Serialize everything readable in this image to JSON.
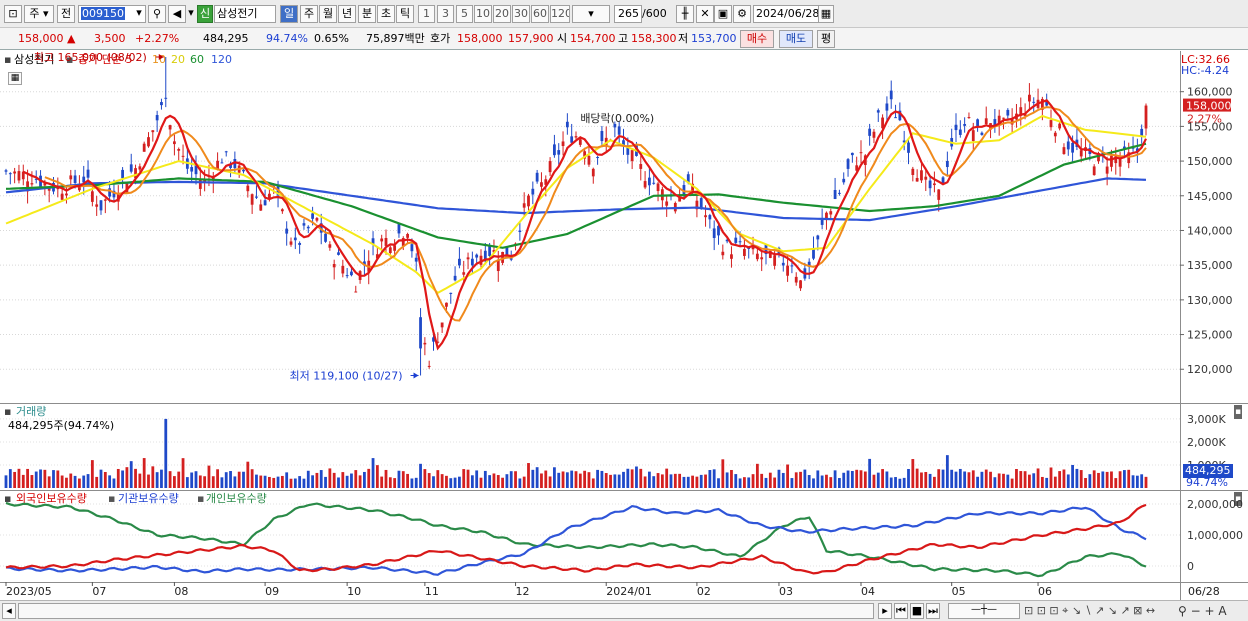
{
  "toolbar": {
    "menu_glyph": "⊡",
    "period_1": "주",
    "period_2": "전",
    "code": "009150",
    "name_badge": "신",
    "name": "삼성전기",
    "periods": [
      "일",
      "주",
      "월",
      "년",
      "분",
      "초",
      "틱"
    ],
    "active_period": "일",
    "intervals": [
      "1",
      "3",
      "5",
      "10",
      "20",
      "30",
      "60",
      "120"
    ],
    "count": "265",
    "count_total": "/600",
    "date": "2024/06/28"
  },
  "quote": {
    "price": "158,000",
    "arrow": "▲",
    "change": "3,500",
    "change_pct": "+2.27%",
    "volume": "484,295",
    "vol_ratio": "94.74%",
    "turnover": "0.65%",
    "amount": "75,897백만",
    "hoga_label": "호가",
    "hoga_sell": "158,000",
    "hoga_buy": "157,900",
    "open_label": "시",
    "open": "154,700",
    "high_label": "고",
    "high": "158,300",
    "low_label": "저",
    "low": "153,700",
    "buy_btn": "매수",
    "sell_btn": "매도",
    "avg_btn": "평"
  },
  "price_panel": {
    "legend_name": "삼성전기",
    "legend_ma_label": "종가 단순 5",
    "legend_ma": [
      "10",
      "20",
      "60",
      "120"
    ],
    "hi_annot": "최고 165,000 (08/02)",
    "lo_annot": "최저 119,100 (10/27)",
    "div_annot": "배당락(0.00%)",
    "lc": "LC:32.66",
    "hc": "HC:-4.24",
    "last_price": "158,000",
    "last_pct": "2.27%"
  },
  "volume_panel": {
    "title": "거래량",
    "value": "484,295주(94.74%)",
    "last": "484,295",
    "last_pct": "94.74%"
  },
  "holding_panel": {
    "legends": [
      "외국인보유수량",
      "기관보유수량",
      "개인보유수량"
    ]
  },
  "colors": {
    "up": "#d42020",
    "down": "#1f49c8",
    "ma5": "#e01818",
    "ma10": "#f08a1c",
    "ma20": "#f5ea1a",
    "ma60": "#1a9030",
    "ma120": "#2f55d8",
    "foreign": "#d81818",
    "inst": "#2f55d8",
    "indiv": "#2a8a48"
  },
  "chart_data": [
    {
      "type": "candlestick",
      "title": "삼성전기",
      "ylim": [
        116000,
        165000
      ],
      "yticks": [
        "160,000",
        "155,000",
        "150,000",
        "145,000",
        "140,000",
        "135,000",
        "130,000",
        "125,000",
        "120,000"
      ],
      "x_ticks": [
        "2023/05",
        "07",
        "08",
        "09",
        "10",
        "11",
        "12",
        "2024/01",
        "02",
        "03",
        "04",
        "05",
        "06",
        "06/28"
      ],
      "close_path": [
        [
          0,
          148500
        ],
        [
          6,
          147800
        ],
        [
          12,
          146000
        ],
        [
          18,
          147500
        ],
        [
          22,
          143500
        ],
        [
          26,
          146500
        ],
        [
          30,
          149000
        ],
        [
          34,
          154500
        ],
        [
          37,
          159000
        ],
        [
          39,
          153000
        ],
        [
          42,
          149000
        ],
        [
          46,
          147000
        ],
        [
          50,
          150500
        ],
        [
          53,
          149500
        ],
        [
          56,
          146500
        ],
        [
          59,
          144000
        ],
        [
          62,
          145800
        ],
        [
          65,
          140500
        ],
        [
          67,
          137500
        ],
        [
          69,
          139500
        ],
        [
          72,
          141500
        ],
        [
          75,
          137000
        ],
        [
          78,
          135000
        ],
        [
          81,
          132500
        ],
        [
          84,
          136500
        ],
        [
          87,
          138500
        ],
        [
          90,
          139000
        ],
        [
          93,
          140500
        ],
        [
          95,
          134500
        ],
        [
          96,
          127500
        ],
        [
          97,
          123500
        ],
        [
          98,
          121500
        ],
        [
          100,
          125000
        ],
        [
          102,
          129000
        ],
        [
          104,
          133000
        ],
        [
          106,
          134500
        ],
        [
          109,
          136500
        ],
        [
          112,
          137000
        ],
        [
          115,
          136500
        ],
        [
          117,
          136500
        ],
        [
          119,
          141000
        ],
        [
          121,
          144500
        ],
        [
          124,
          146500
        ],
        [
          127,
          150000
        ],
        [
          130,
          154000
        ],
        [
          133,
          153500
        ],
        [
          136,
          150000
        ],
        [
          139,
          153000
        ],
        [
          141,
          154500
        ],
        [
          143,
          152000
        ],
        [
          146,
          149500
        ],
        [
          149,
          147500
        ],
        [
          152,
          145500
        ],
        [
          155,
          144500
        ],
        [
          158,
          146500
        ],
        [
          161,
          143500
        ],
        [
          164,
          139500
        ],
        [
          167,
          137500
        ],
        [
          170,
          137500
        ],
        [
          173,
          136500
        ],
        [
          176,
          136000
        ],
        [
          179,
          135500
        ],
        [
          182,
          135500
        ],
        [
          184,
          132500
        ],
        [
          187,
          136000
        ],
        [
          190,
          142500
        ],
        [
          193,
          145500
        ],
        [
          196,
          150000
        ],
        [
          199,
          151000
        ],
        [
          202,
          156000
        ],
        [
          205,
          158000
        ],
        [
          207,
          156000
        ],
        [
          210,
          150000
        ],
        [
          213,
          146500
        ],
        [
          216,
          145000
        ],
        [
          219,
          152500
        ],
        [
          222,
          156000
        ],
        [
          225,
          154000
        ],
        [
          228,
          156000
        ],
        [
          231,
          155000
        ],
        [
          234,
          156500
        ],
        [
          237,
          158500
        ],
        [
          240,
          159000
        ],
        [
          242,
          156500
        ],
        [
          245,
          153000
        ],
        [
          248,
          151500
        ],
        [
          251,
          150500
        ],
        [
          254,
          150000
        ],
        [
          257,
          150500
        ],
        [
          260,
          150500
        ],
        [
          262,
          151500
        ],
        [
          264,
          158000
        ]
      ],
      "moving_averages": {
        "ma20": [
          [
            0,
            141000
          ],
          [
            20,
            146000
          ],
          [
            40,
            150000
          ],
          [
            55,
            148000
          ],
          [
            70,
            143000
          ],
          [
            85,
            138000
          ],
          [
            95,
            134000
          ],
          [
            100,
            131000
          ],
          [
            110,
            134500
          ],
          [
            120,
            142000
          ],
          [
            130,
            149000
          ],
          [
            140,
            153000
          ],
          [
            150,
            150500
          ],
          [
            160,
            146000
          ],
          [
            170,
            139500
          ],
          [
            180,
            137000
          ],
          [
            190,
            137500
          ],
          [
            200,
            146000
          ],
          [
            210,
            154000
          ],
          [
            220,
            152500
          ],
          [
            230,
            153000
          ],
          [
            240,
            156500
          ],
          [
            250,
            154500
          ],
          [
            264,
            153500
          ]
        ],
        "ma60": [
          [
            0,
            146000
          ],
          [
            20,
            146500
          ],
          [
            40,
            147500
          ],
          [
            60,
            147000
          ],
          [
            80,
            143500
          ],
          [
            100,
            139000
          ],
          [
            115,
            137500
          ],
          [
            130,
            139500
          ],
          [
            150,
            145000
          ],
          [
            165,
            145200
          ],
          [
            180,
            144000
          ],
          [
            200,
            142800
          ],
          [
            215,
            143500
          ],
          [
            230,
            145000
          ],
          [
            245,
            149500
          ],
          [
            264,
            152500
          ]
        ],
        "ma120": [
          [
            0,
            145500
          ],
          [
            20,
            146800
          ],
          [
            40,
            147000
          ],
          [
            60,
            146800
          ],
          [
            80,
            145000
          ],
          [
            100,
            143200
          ],
          [
            120,
            142500
          ],
          [
            140,
            143000
          ],
          [
            160,
            143300
          ],
          [
            180,
            141800
          ],
          [
            200,
            141500
          ],
          [
            220,
            143500
          ],
          [
            240,
            145800
          ],
          [
            255,
            147500
          ],
          [
            264,
            147300
          ]
        ]
      }
    },
    {
      "type": "bar",
      "title": "거래량",
      "yticks": [
        "3,000K",
        "2,000K",
        "1,000K"
      ],
      "last_value": 484295
    },
    {
      "type": "line",
      "series": [
        {
          "name": "외국인보유수량",
          "points": [
            [
              0,
              -50000
            ],
            [
              15,
              0
            ],
            [
              25,
              200000
            ],
            [
              35,
              350000
            ],
            [
              45,
              500000
            ],
            [
              55,
              650000
            ],
            [
              62,
              500000
            ],
            [
              68,
              -150000
            ],
            [
              75,
              -100000
            ],
            [
              85,
              50000
            ],
            [
              95,
              350000
            ],
            [
              100,
              500000
            ],
            [
              110,
              250000
            ],
            [
              120,
              0
            ],
            [
              135,
              -150000
            ],
            [
              145,
              50000
            ],
            [
              160,
              -50000
            ],
            [
              175,
              300000
            ],
            [
              185,
              -200000
            ],
            [
              190,
              -200000
            ],
            [
              200,
              200000
            ],
            [
              215,
              700000
            ],
            [
              225,
              600000
            ],
            [
              240,
              1000000
            ],
            [
              250,
              1200000
            ],
            [
              258,
              1400000
            ],
            [
              264,
              2000000
            ]
          ]
        },
        {
          "name": "기관보유수량",
          "points": [
            [
              0,
              -80000
            ],
            [
              15,
              -150000
            ],
            [
              25,
              -100000
            ],
            [
              35,
              -30000
            ],
            [
              45,
              -180000
            ],
            [
              55,
              -100000
            ],
            [
              62,
              -120000
            ],
            [
              72,
              -100000
            ],
            [
              85,
              -50000
            ],
            [
              100,
              -250000
            ],
            [
              110,
              100000
            ],
            [
              120,
              400000
            ],
            [
              130,
              1200000
            ],
            [
              145,
              1900000
            ],
            [
              155,
              1700000
            ],
            [
              165,
              1800000
            ],
            [
              175,
              1300000
            ],
            [
              185,
              1100000
            ],
            [
              195,
              1200000
            ],
            [
              210,
              1300000
            ],
            [
              225,
              1700000
            ],
            [
              240,
              1700000
            ],
            [
              250,
              1900000
            ],
            [
              258,
              1200000
            ],
            [
              264,
              900000
            ]
          ]
        },
        {
          "name": "개인보유수량",
          "points": [
            [
              0,
              2000000
            ],
            [
              15,
              1900000
            ],
            [
              25,
              1500000
            ],
            [
              35,
              1000000
            ],
            [
              45,
              900000
            ],
            [
              55,
              700000
            ],
            [
              62,
              1500000
            ],
            [
              70,
              2000000
            ],
            [
              85,
              1800000
            ],
            [
              95,
              1500000
            ],
            [
              100,
              1300000
            ],
            [
              110,
              1100000
            ],
            [
              120,
              700000
            ],
            [
              135,
              600000
            ],
            [
              150,
              700000
            ],
            [
              160,
              600000
            ],
            [
              170,
              300000
            ],
            [
              180,
              1300000
            ],
            [
              186,
              1600000
            ],
            [
              190,
              500000
            ],
            [
              200,
              300000
            ],
            [
              215,
              -100000
            ],
            [
              230,
              -150000
            ],
            [
              240,
              -300000
            ],
            [
              250,
              300000
            ],
            [
              258,
              400000
            ],
            [
              264,
              0
            ]
          ]
        }
      ],
      "yticks": [
        "2,000,000",
        "1,000,000",
        "0"
      ]
    }
  ]
}
